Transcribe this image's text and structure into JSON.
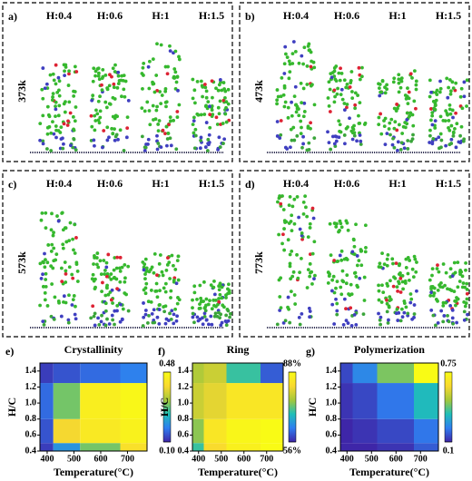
{
  "panels": [
    {
      "label": "a)",
      "temperature": "373k",
      "columns": [
        "H:0.4",
        "H:0.6",
        "H:1",
        "H:1.5"
      ]
    },
    {
      "label": "b)",
      "temperature": "473k",
      "columns": [
        "H:0.4",
        "H:0.6",
        "H:1",
        "H:1.5"
      ]
    },
    {
      "label": "c)",
      "temperature": "573k",
      "columns": [
        "H:0.4",
        "H:0.6",
        "H:1",
        "H:1.5"
      ]
    },
    {
      "label": "d)",
      "temperature": "773k",
      "columns": [
        "H:0.4",
        "H:0.6",
        "H:1",
        "H:1.5"
      ]
    }
  ],
  "chart_data": [
    {
      "type": "heatmap",
      "label": "e)",
      "title": "Crystallinity",
      "x_label": "Temperature(°C)",
      "y_label": "H/C",
      "x": [
        373,
        473,
        573,
        773
      ],
      "y": [
        0.4,
        0.6,
        1.0,
        1.5
      ],
      "values": [
        [
          0.12,
          0.2,
          0.3,
          0.42
        ],
        [
          0.14,
          0.4,
          0.44,
          0.46
        ],
        [
          0.16,
          0.3,
          0.45,
          0.47
        ],
        [
          0.12,
          0.14,
          0.16,
          0.18
        ]
      ],
      "xlim": [
        373,
        773
      ],
      "ylim": [
        0.4,
        1.5
      ],
      "xticks": [
        400,
        500,
        600,
        700
      ],
      "yticks": [
        0.4,
        0.6,
        {
          "value": 0.8,
          "label": "0.8"
        },
        {
          "value": 1.0,
          "label": "1.0"
        },
        1.2,
        1.4
      ],
      "clim": [
        0.1,
        0.48
      ],
      "cticks": [
        {
          "value": 0.48,
          "label": "0.48"
        },
        {
          "value": 0.1,
          "label": "0.10"
        }
      ],
      "colormap": [
        "#3e26a8",
        "#2f7ef0",
        "#1fbfb8",
        "#a5c83a",
        "#f9d92f",
        "#f9fb15"
      ]
    },
    {
      "type": "heatmap",
      "label": "f)",
      "title": "Ring",
      "x_label": "Temperature(°C)",
      "y_label": "H/C",
      "x": [
        373,
        473,
        573,
        773
      ],
      "y": [
        0.4,
        0.6,
        1.0,
        1.5
      ],
      "values": [
        [
          70,
          82,
          86,
          88
        ],
        [
          74,
          84,
          87,
          88
        ],
        [
          78,
          80,
          84,
          84
        ],
        [
          76,
          78,
          70,
          60
        ]
      ],
      "xlim": [
        373,
        773
      ],
      "ylim": [
        0.4,
        1.5
      ],
      "xticks": [
        400,
        500,
        600,
        700
      ],
      "yticks": [
        0.4,
        0.6,
        0.8,
        {
          "value": 1.0,
          "label": "1.0"
        },
        1.2,
        1.4
      ],
      "clim": [
        56,
        88
      ],
      "cticks": [
        {
          "value": 88,
          "label": "88%"
        },
        {
          "value": 56,
          "label": "56%"
        }
      ],
      "colormap": [
        "#3e26a8",
        "#2f7ef0",
        "#1fbfb8",
        "#a5c83a",
        "#f9d92f",
        "#f9fb15"
      ]
    },
    {
      "type": "heatmap",
      "label": "g)",
      "title": "Polymerization",
      "x_label": "Temperature(°C)",
      "y_label": "H/C",
      "x": [
        373,
        473,
        573,
        773
      ],
      "y": [
        0.4,
        0.6,
        1.0,
        1.5
      ],
      "values": [
        [
          0.1,
          0.1,
          0.12,
          0.18
        ],
        [
          0.1,
          0.12,
          0.15,
          0.22
        ],
        [
          0.12,
          0.15,
          0.22,
          0.35
        ],
        [
          0.15,
          0.25,
          0.45,
          0.75
        ]
      ],
      "xlim": [
        373,
        773
      ],
      "ylim": [
        0.4,
        1.5
      ],
      "xticks": [
        400,
        500,
        600,
        700
      ],
      "yticks": [
        0.4,
        0.6,
        0.8,
        {
          "value": 1.0,
          "label": "1.0"
        },
        1.2,
        1.4
      ],
      "clim": [
        0.1,
        0.75
      ],
      "cticks": [
        0.75,
        0.1
      ],
      "colormap": [
        "#3e26a8",
        "#2f7ef0",
        "#1fbfb8",
        "#a5c83a",
        "#f9d92f",
        "#f9fb15"
      ]
    }
  ]
}
